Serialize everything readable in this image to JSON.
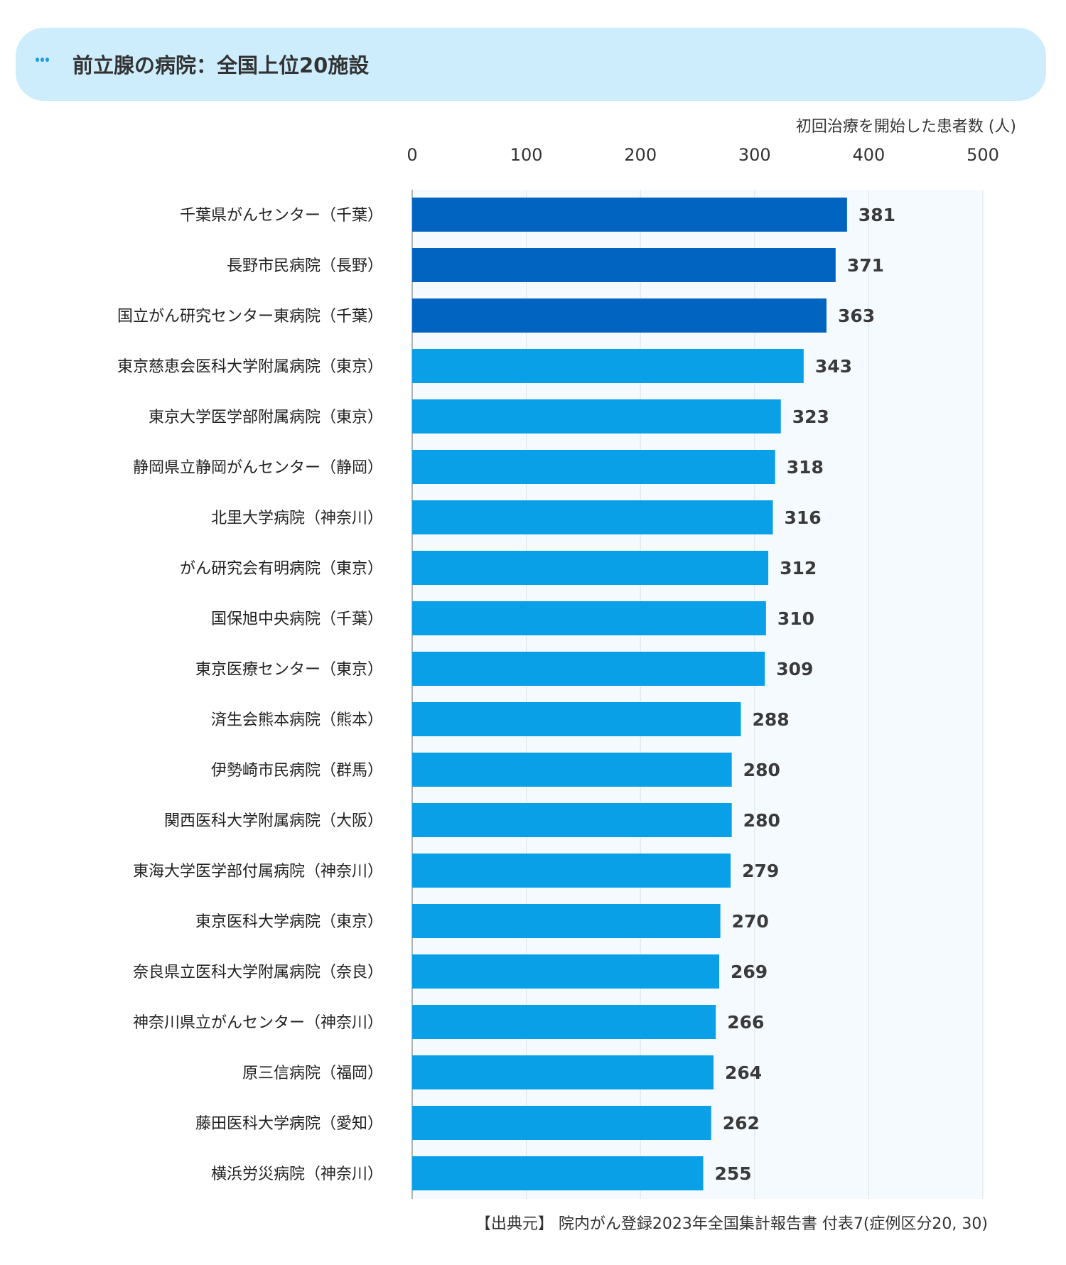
{
  "header": {
    "title": "前立腺の病院：全国上位20施設",
    "icon": "ellipsis-icon"
  },
  "source_note": "【出典元】 院内がん登録2023年全国集計報告書 付表7(症例区分20, 30)",
  "colors": {
    "highlight": "#0064C0",
    "default": "#0AA0E8",
    "plot_bg": "#F5FAFE",
    "banner_bg": "#CDEDFD"
  },
  "chart_data": {
    "type": "bar",
    "orientation": "horizontal",
    "xlabel": "初回治療を開始した患者数 (人)",
    "xlim": [
      0,
      500
    ],
    "xticks": [
      "0",
      "100",
      "200",
      "300",
      "400",
      "500"
    ],
    "grid": true,
    "highlighted_top": 3,
    "categories": [
      "千葉県がんセンター（千葉）",
      "長野市民病院（長野）",
      "国立がん研究センター東病院（千葉）",
      "東京慈恵会医科大学附属病院（東京）",
      "東京大学医学部附属病院（東京）",
      "静岡県立静岡がんセンター（静岡）",
      "北里大学病院（神奈川）",
      "がん研究会有明病院（東京）",
      "国保旭中央病院（千葉）",
      "東京医療センター（東京）",
      "済生会熊本病院（熊本）",
      "伊勢崎市民病院（群馬）",
      "関西医科大学附属病院（大阪）",
      "東海大学医学部付属病院（神奈川）",
      "東京医科大学病院（東京）",
      "奈良県立医科大学附属病院（奈良）",
      "神奈川県立がんセンター（神奈川）",
      "原三信病院（福岡）",
      "藤田医科大学病院（愛知）",
      "横浜労災病院（神奈川）"
    ],
    "values": [
      381,
      371,
      363,
      343,
      323,
      318,
      316,
      312,
      310,
      309,
      288,
      280,
      280,
      279,
      270,
      269,
      266,
      264,
      262,
      255
    ]
  }
}
